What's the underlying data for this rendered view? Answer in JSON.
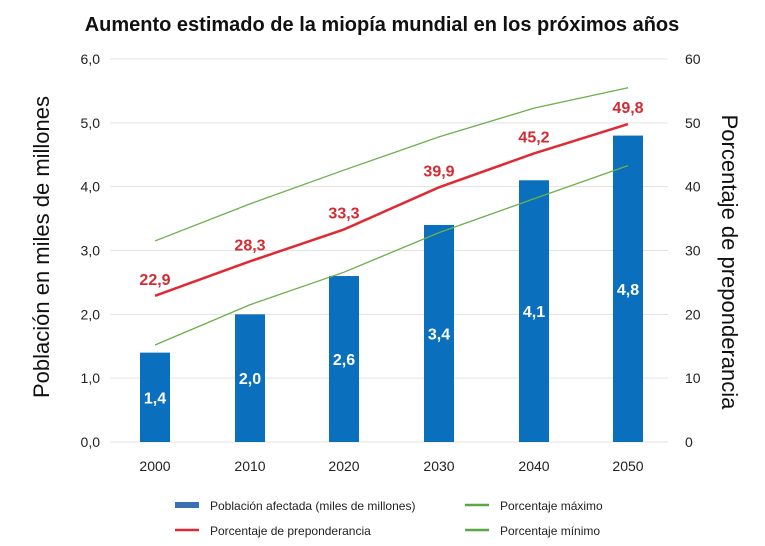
{
  "chart_data": {
    "type": "bar",
    "title": "Aumento estimado de la miopía mundial en los próximos años",
    "xlabel": "",
    "ylabel": "Población en miles de millones",
    "y2label": "Porcentaje de preponderancia",
    "categories": [
      "2000",
      "2010",
      "2020",
      "2030",
      "2040",
      "2050"
    ],
    "ylim": [
      0,
      6
    ],
    "y2lim": [
      0,
      60
    ],
    "yticks": [
      "0,0",
      "1,0",
      "2,0",
      "3,0",
      "4,0",
      "5,0",
      "6,0"
    ],
    "y2ticks": [
      "0",
      "10",
      "20",
      "30",
      "40",
      "50",
      "60"
    ],
    "grid": true,
    "legend_position": "bottom",
    "series": [
      {
        "name": "Población afectada (miles de millones)",
        "type": "bar",
        "axis": "left",
        "color": "#0a6fbd",
        "values": [
          1.4,
          2.0,
          2.6,
          3.4,
          4.1,
          4.8
        ],
        "labels": [
          "1,4",
          "2,0",
          "2,6",
          "3,4",
          "4,1",
          "4,8"
        ]
      },
      {
        "name": "Porcentaje de preponderancia",
        "type": "line",
        "axis": "right",
        "color": "#e02a33",
        "values": [
          22.9,
          28.3,
          33.3,
          39.9,
          45.2,
          49.8
        ],
        "labels": [
          "22,9",
          "28,3",
          "33,3",
          "39,9",
          "45,2",
          "49,8"
        ]
      },
      {
        "name": "Porcentaje máximo",
        "type": "line",
        "axis": "right",
        "color": "#6ab04c",
        "values": [
          31.5,
          37.3,
          42.6,
          47.8,
          52.3,
          55.5
        ]
      },
      {
        "name": "Porcentaje mínimo",
        "type": "line",
        "axis": "right",
        "color": "#6ab04c",
        "values": [
          15.2,
          21.5,
          26.6,
          32.8,
          38.1,
          43.3
        ]
      }
    ]
  }
}
